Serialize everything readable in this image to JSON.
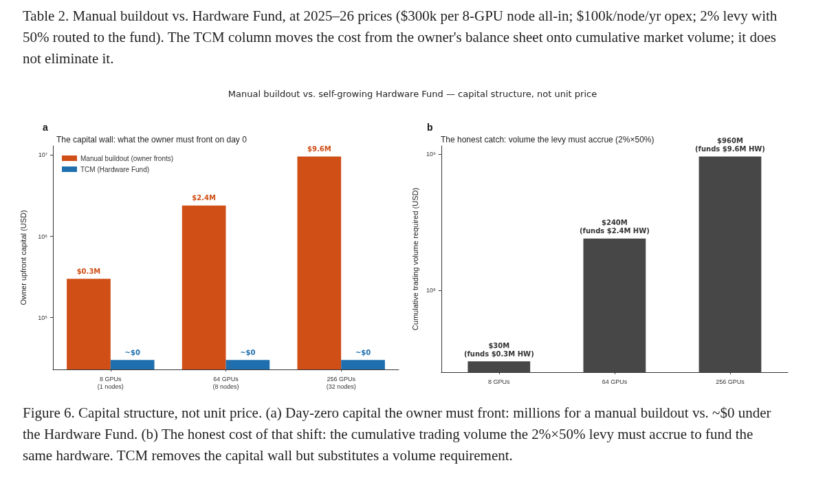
{
  "chart_data": [
    {
      "type": "bar",
      "title": "The capital wall: what the owner must front on day 0",
      "annotations": [
        "Table 2. Manual buildout vs. Hardware Fund, at 2025–26 prices ($300k per 8-GPU node all-in; $100k/node/yr opex; 2% levy with 50% routed to the fund). The TCM column moves the cost from the owner's balance sheet onto cumulative market volume; it does not eliminate it.",
        "Manual buildout vs. self-growing Hardware Fund — capital structure, not unit price",
        "a",
        "Figure 6. Capital structure, not unit price. (a) Day-zero capital the owner must front: millions for a manual buildout vs. ~$0 under the Hardware Fund. (b) The honest cost of that shift: the cumulative trading volume the 2%×50% levy must accrue to fund the same hardware. TCM removes the capital wall but substitutes a volume requirement.",
        {
          "text": "~$0",
          "x": "8 GPUs\n(1 nodes)",
          "y": 30000
        },
        {
          "text": "~$0",
          "x": "64 GPUs\n(8 nodes)",
          "y": 30000
        },
        {
          "text": "~$0",
          "x": "256 GPUs\n(32 nodes)",
          "y": 30000
        }
      ],
      "categories": [
        "8 GPUs\n(1 nodes)",
        "64 GPUs\n(8 nodes)",
        "256 GPUs\n(32 nodes)"
      ],
      "ylabel": "Owner upfront capital (USD)",
      "series": [
        {
          "name": "Manual buildout (owner fronts)",
          "color": "#d04f17",
          "values": [
            300000,
            2400000,
            9600000
          ],
          "value_labels": [
            "$0.3M",
            "$2.4M",
            "$9.6M"
          ]
        },
        {
          "name": "TCM (Hardware Fund)",
          "color": "#1f6fae",
          "values": [
            30000,
            30000,
            30000
          ]
        }
      ],
      "log": true,
      "ylim": [
        23000,
        13000000
      ],
      "yticks": [
        {
          "value": 100000,
          "label": "10⁵"
        },
        {
          "value": 1000000,
          "label": "10⁶"
        },
        {
          "value": 10000000,
          "label": "10⁷"
        }
      ],
      "legend": "top left",
      "grid": false
    },
    {
      "type": "bar",
      "title": "The honest catch: volume the levy must accrue (2%×50%)",
      "annotations": [
        "b"
      ],
      "categories": [
        "8 GPUs",
        "64 GPUs",
        "256 GPUs"
      ],
      "ylabel": "Cumulative trading volume required (USD)",
      "values": [
        30000000,
        240000000,
        960000000
      ],
      "color": "#474747",
      "value_labels": [
        "$30M\n(funds $0.3M HW)",
        "$240M\n(funds $2.4M HW)",
        "$960M\n(funds $9.6M HW)"
      ],
      "log": true,
      "ylim": [
        25000000,
        1150000000
      ],
      "yticks": [
        {
          "value": 100000000,
          "label": "10⁸"
        },
        {
          "value": 1000000000,
          "label": "10⁹"
        }
      ],
      "legend": false,
      "grid": false
    }
  ]
}
